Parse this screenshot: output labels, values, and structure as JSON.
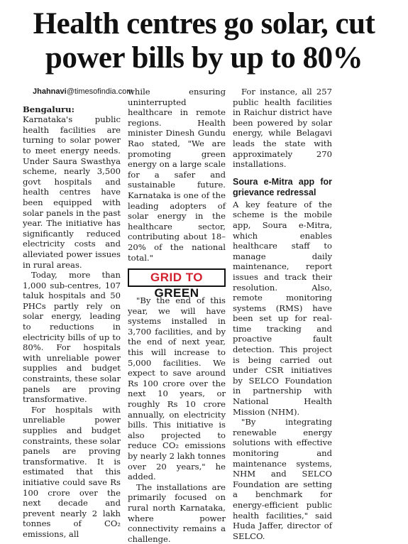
{
  "headline": {
    "line1": "Health centres go solar, cut",
    "line2": "power bills by up to 80%"
  },
  "byline": {
    "author": "Jhahnavi",
    "email": "@timesofindia.com"
  },
  "col1": {
    "dateline": "Bengaluru:",
    "p1": " Karnataka's public health facilities are turning to solar power to meet energy needs. Under Saura Swasthya scheme, nearly 3,500 govt hospitals and health centres have been equipped with solar panels in the past year. The initiative has significantly reduced electricity costs and alleviated power issues in rural areas.",
    "p2": "Today, more than 1,000 sub-centres, 107 taluk hospitals and 50 PHCs partly rely on solar energy, leading to reductions in electricity bills of up to 80%. For hospitals with unreliable power supplies and budget constraints, these solar panels are proving transformative.",
    "p3": "For hospitals with unreliable power supplies and budget constraints, these solar panels are proving transformative. It is estimated that this initiative could save Rs 100 crore over the next decade and prevent nearly 2 lakh tonnes of CO₂ emissions, all"
  },
  "col2": {
    "p1": "while ensuring uninterrupted healthcare in remote regions. Health minister Dinesh Gundu Rao stated, \"We are promoting green energy on a large scale for a safer and sustainable future. Karnataka is one of the leading adopters of solar energy in the healthcare sector, contributing about 18–20% of the national total.\"",
    "banner_part1": "GRID TO",
    "banner_part2": "GREEN",
    "p2": "\"By the end of this year, we will have systems installed in 3,700 facilities, and by the end of next year, this will increase to 5,000 facilities. We expect to save around Rs 100 crore over the next 10 years, or roughly Rs 10 crore annually, on electricity bills. This initiative is also projected to reduce CO₂ emissions by nearly 2 lakh tonnes over 20 years,\" he added.",
    "p3": "The installations are primarily focused on rural north Karnataka, where power connectivity remains a challenge."
  },
  "col3": {
    "p1": "For instance, all 257 public health facilities in Raichur district have been powered by solar energy, while Belagavi leads the state with approximately 270 installations.",
    "subhead": "Soura e-Mitra app for grievance redressal",
    "p2": "A key feature of the scheme is the mobile app, Soura e-Mitra, which enables healthcare staff to manage daily maintenance, report issues and track their resolution. Also, remote monitoring systems (RMS) have been set up for real-time tracking and proactive fault detection. This project is being carried out under CSR initiatives by SELCO Foundation in partnership with National Health Mission (NHM).",
    "p3": "\"By integrating renewable energy solutions with effective monitoring and maintenance systems, NHM and SELCO Foundation are setting a benchmark for energy-efficient public health facilities,\" said Huda Jaffer, director of SELCO."
  },
  "colors": {
    "banner_accent": "#d2212f",
    "text": "#1a1a1a"
  }
}
